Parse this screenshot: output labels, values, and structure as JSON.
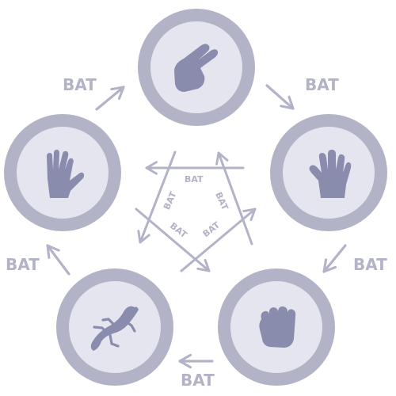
{
  "colors": {
    "ring": "#b3b3c7",
    "disc": "#e5e5ef",
    "icon": "#8a8cae",
    "arrow": "#b3b3c7",
    "label": "#b3b3c7",
    "background": "#ffffff"
  },
  "nodes": [
    {
      "id": "scissors",
      "icon": "scissors-hand-icon"
    },
    {
      "id": "paper",
      "icon": "paper-hand-icon"
    },
    {
      "id": "rock",
      "icon": "rock-fist-icon"
    },
    {
      "id": "lizard",
      "icon": "lizard-icon"
    },
    {
      "id": "spock",
      "icon": "spock-hand-icon"
    }
  ],
  "outer_labels": [
    "BAT",
    "BAT",
    "BAT",
    "BAT",
    "BAT"
  ],
  "inner_labels": [
    "BAT",
    "BAT",
    "BAT",
    "BAT",
    "BAT"
  ]
}
